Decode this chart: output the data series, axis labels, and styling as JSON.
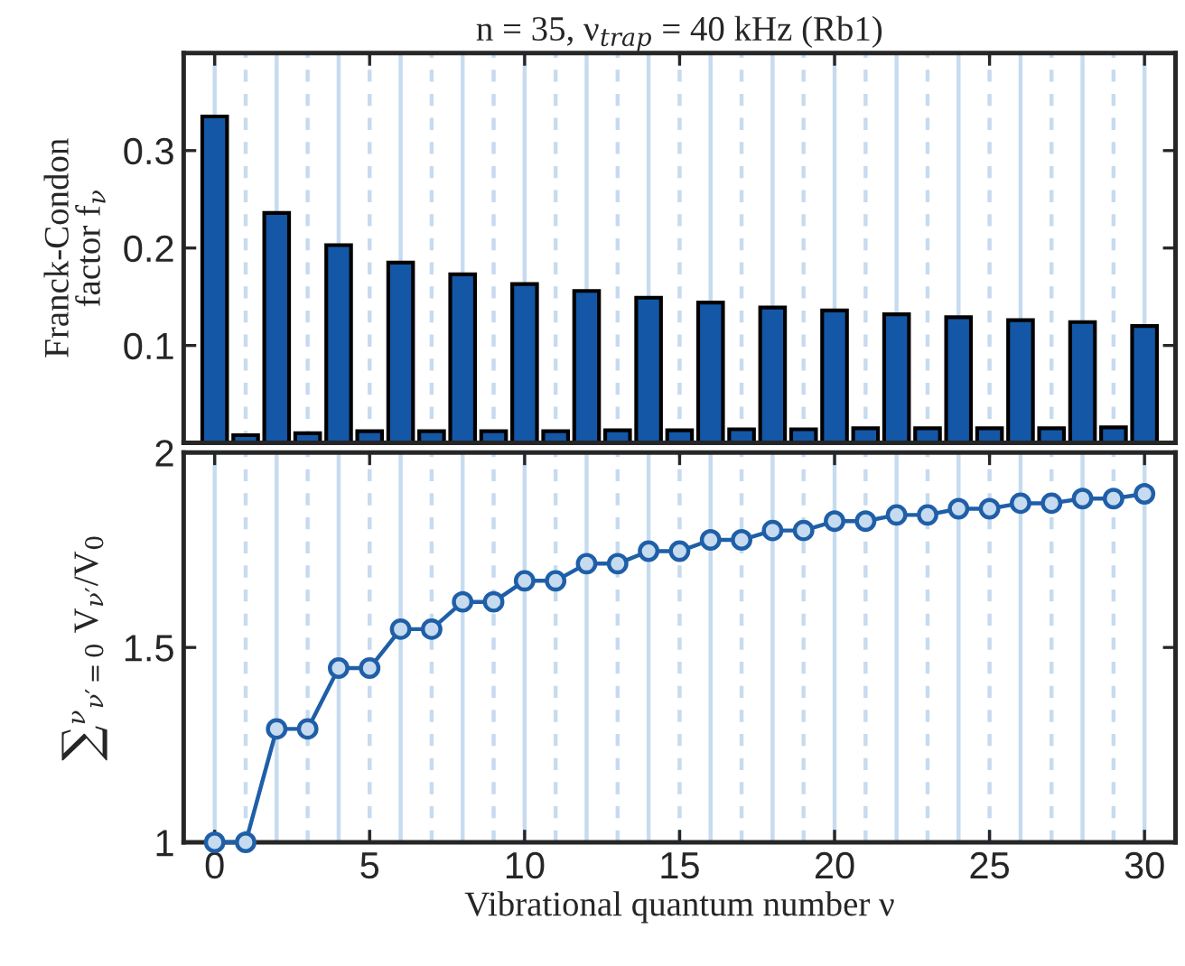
{
  "chart_data": [
    {
      "type": "bar",
      "title": "n = 35, ν$_{trap}$ = 40 kHz (Rb1)",
      "ylabel": "Franck-Condon\nfactor f$_{ν}$",
      "x": [
        0,
        1,
        2,
        3,
        4,
        5,
        6,
        7,
        8,
        9,
        10,
        11,
        12,
        13,
        14,
        15,
        16,
        17,
        18,
        19,
        20,
        21,
        22,
        23,
        24,
        25,
        26,
        27,
        28,
        29,
        30
      ],
      "series": [
        {
          "color": "#1357a6",
          "values": [
            0.335,
            0.008,
            0.236,
            0.01,
            0.203,
            0.012,
            0.185,
            0.012,
            0.173,
            0.012,
            0.163,
            0.012,
            0.156,
            0.013,
            0.149,
            0.013,
            0.144,
            0.014,
            0.139,
            0.014,
            0.136,
            0.015,
            0.132,
            0.015,
            0.129,
            0.015,
            0.126,
            0.015,
            0.124,
            0.016,
            0.12
          ]
        }
      ],
      "xlim": [
        -1,
        31
      ],
      "xticks": [
        0,
        5,
        10,
        15,
        20,
        25,
        30
      ],
      "ylim": [
        0,
        0.4
      ],
      "yticks": [
        0.1,
        0.2,
        0.3
      ],
      "tick_labels": "y",
      "legend": false,
      "grid": false,
      "ref_lines": [
        {
          "axis": "x",
          "value": 0,
          "color": "#c6dbef",
          "line_style": "solid"
        },
        {
          "axis": "x",
          "value": 1,
          "color": "#c6dbef",
          "line_style": "dashed"
        },
        {
          "axis": "x",
          "value": 2,
          "color": "#c6dbef",
          "line_style": "solid"
        },
        {
          "axis": "x",
          "value": 3,
          "color": "#c6dbef",
          "line_style": "dashed"
        },
        {
          "axis": "x",
          "value": 4,
          "color": "#c6dbef",
          "line_style": "solid"
        },
        {
          "axis": "x",
          "value": 5,
          "color": "#c6dbef",
          "line_style": "dashed"
        },
        {
          "axis": "x",
          "value": 6,
          "color": "#c6dbef",
          "line_style": "solid"
        },
        {
          "axis": "x",
          "value": 7,
          "color": "#c6dbef",
          "line_style": "dashed"
        },
        {
          "axis": "x",
          "value": 8,
          "color": "#c6dbef",
          "line_style": "solid"
        },
        {
          "axis": "x",
          "value": 9,
          "color": "#c6dbef",
          "line_style": "dashed"
        },
        {
          "axis": "x",
          "value": 10,
          "color": "#c6dbef",
          "line_style": "solid"
        },
        {
          "axis": "x",
          "value": 11,
          "color": "#c6dbef",
          "line_style": "dashed"
        },
        {
          "axis": "x",
          "value": 12,
          "color": "#c6dbef",
          "line_style": "solid"
        },
        {
          "axis": "x",
          "value": 13,
          "color": "#c6dbef",
          "line_style": "dashed"
        },
        {
          "axis": "x",
          "value": 14,
          "color": "#c6dbef",
          "line_style": "solid"
        },
        {
          "axis": "x",
          "value": 15,
          "color": "#c6dbef",
          "line_style": "dashed"
        },
        {
          "axis": "x",
          "value": 16,
          "color": "#c6dbef",
          "line_style": "solid"
        },
        {
          "axis": "x",
          "value": 17,
          "color": "#c6dbef",
          "line_style": "dashed"
        },
        {
          "axis": "x",
          "value": 18,
          "color": "#c6dbef",
          "line_style": "solid"
        },
        {
          "axis": "x",
          "value": 19,
          "color": "#c6dbef",
          "line_style": "dashed"
        },
        {
          "axis": "x",
          "value": 20,
          "color": "#c6dbef",
          "line_style": "solid"
        },
        {
          "axis": "x",
          "value": 21,
          "color": "#c6dbef",
          "line_style": "dashed"
        },
        {
          "axis": "x",
          "value": 22,
          "color": "#c6dbef",
          "line_style": "solid"
        },
        {
          "axis": "x",
          "value": 23,
          "color": "#c6dbef",
          "line_style": "dashed"
        },
        {
          "axis": "x",
          "value": 24,
          "color": "#c6dbef",
          "line_style": "solid"
        },
        {
          "axis": "x",
          "value": 25,
          "color": "#c6dbef",
          "line_style": "dashed"
        },
        {
          "axis": "x",
          "value": 26,
          "color": "#c6dbef",
          "line_style": "solid"
        },
        {
          "axis": "x",
          "value": 27,
          "color": "#c6dbef",
          "line_style": "dashed"
        },
        {
          "axis": "x",
          "value": 28,
          "color": "#c6dbef",
          "line_style": "solid"
        },
        {
          "axis": "x",
          "value": 29,
          "color": "#c6dbef",
          "line_style": "dashed"
        },
        {
          "axis": "x",
          "value": 30,
          "color": "#c6dbef",
          "line_style": "solid"
        }
      ]
    },
    {
      "type": "line",
      "ylabel": "∑$^{ν}$$_{ν′=0}$ V$_{ν′}$/V$_{0}$",
      "xlabel": "Vibrational quantum number ν",
      "x": [
        0,
        1,
        2,
        3,
        4,
        5,
        6,
        7,
        8,
        9,
        10,
        11,
        12,
        13,
        14,
        15,
        16,
        17,
        18,
        19,
        20,
        21,
        22,
        23,
        24,
        25,
        26,
        27,
        28,
        29,
        30
      ],
      "series": [
        {
          "color": "#1f5fa8",
          "values": [
            1,
            1,
            1.291,
            1.291,
            1.447,
            1.447,
            1.547,
            1.547,
            1.617,
            1.617,
            1.671,
            1.671,
            1.715,
            1.715,
            1.747,
            1.747,
            1.776,
            1.776,
            1.8,
            1.8,
            1.824,
            1.824,
            1.84,
            1.84,
            1.856,
            1.856,
            1.87,
            1.87,
            1.882,
            1.882,
            1.894
          ]
        }
      ],
      "marker": "circle",
      "line_style": "solid",
      "xlim": [
        -1,
        31
      ],
      "xticks": [
        0,
        5,
        10,
        15,
        20,
        25,
        30
      ],
      "ylim": [
        1,
        2
      ],
      "yticks": [
        1,
        1.5,
        2
      ],
      "legend": false,
      "grid": false,
      "ref_lines": [
        {
          "axis": "x",
          "value": 0,
          "color": "#c6dbef",
          "line_style": "solid"
        },
        {
          "axis": "x",
          "value": 1,
          "color": "#c6dbef",
          "line_style": "dashed"
        },
        {
          "axis": "x",
          "value": 2,
          "color": "#c6dbef",
          "line_style": "solid"
        },
        {
          "axis": "x",
          "value": 3,
          "color": "#c6dbef",
          "line_style": "dashed"
        },
        {
          "axis": "x",
          "value": 4,
          "color": "#c6dbef",
          "line_style": "solid"
        },
        {
          "axis": "x",
          "value": 5,
          "color": "#c6dbef",
          "line_style": "dashed"
        },
        {
          "axis": "x",
          "value": 6,
          "color": "#c6dbef",
          "line_style": "solid"
        },
        {
          "axis": "x",
          "value": 7,
          "color": "#c6dbef",
          "line_style": "dashed"
        },
        {
          "axis": "x",
          "value": 8,
          "color": "#c6dbef",
          "line_style": "solid"
        },
        {
          "axis": "x",
          "value": 9,
          "color": "#c6dbef",
          "line_style": "dashed"
        },
        {
          "axis": "x",
          "value": 10,
          "color": "#c6dbef",
          "line_style": "solid"
        },
        {
          "axis": "x",
          "value": 11,
          "color": "#c6dbef",
          "line_style": "dashed"
        },
        {
          "axis": "x",
          "value": 12,
          "color": "#c6dbef",
          "line_style": "solid"
        },
        {
          "axis": "x",
          "value": 13,
          "color": "#c6dbef",
          "line_style": "dashed"
        },
        {
          "axis": "x",
          "value": 14,
          "color": "#c6dbef",
          "line_style": "solid"
        },
        {
          "axis": "x",
          "value": 15,
          "color": "#c6dbef",
          "line_style": "dashed"
        },
        {
          "axis": "x",
          "value": 16,
          "color": "#c6dbef",
          "line_style": "solid"
        },
        {
          "axis": "x",
          "value": 17,
          "color": "#c6dbef",
          "line_style": "dashed"
        },
        {
          "axis": "x",
          "value": 18,
          "color": "#c6dbef",
          "line_style": "solid"
        },
        {
          "axis": "x",
          "value": 19,
          "color": "#c6dbef",
          "line_style": "dashed"
        },
        {
          "axis": "x",
          "value": 20,
          "color": "#c6dbef",
          "line_style": "solid"
        },
        {
          "axis": "x",
          "value": 21,
          "color": "#c6dbef",
          "line_style": "dashed"
        },
        {
          "axis": "x",
          "value": 22,
          "color": "#c6dbef",
          "line_style": "solid"
        },
        {
          "axis": "x",
          "value": 23,
          "color": "#c6dbef",
          "line_style": "dashed"
        },
        {
          "axis": "x",
          "value": 24,
          "color": "#c6dbef",
          "line_style": "solid"
        },
        {
          "axis": "x",
          "value": 25,
          "color": "#c6dbef",
          "line_style": "dashed"
        },
        {
          "axis": "x",
          "value": 26,
          "color": "#c6dbef",
          "line_style": "solid"
        },
        {
          "axis": "x",
          "value": 27,
          "color": "#c6dbef",
          "line_style": "dashed"
        },
        {
          "axis": "x",
          "value": 28,
          "color": "#c6dbef",
          "line_style": "solid"
        },
        {
          "axis": "x",
          "value": 29,
          "color": "#c6dbef",
          "line_style": "dashed"
        },
        {
          "axis": "x",
          "value": 30,
          "color": "#c6dbef",
          "line_style": "solid"
        }
      ]
    }
  ]
}
